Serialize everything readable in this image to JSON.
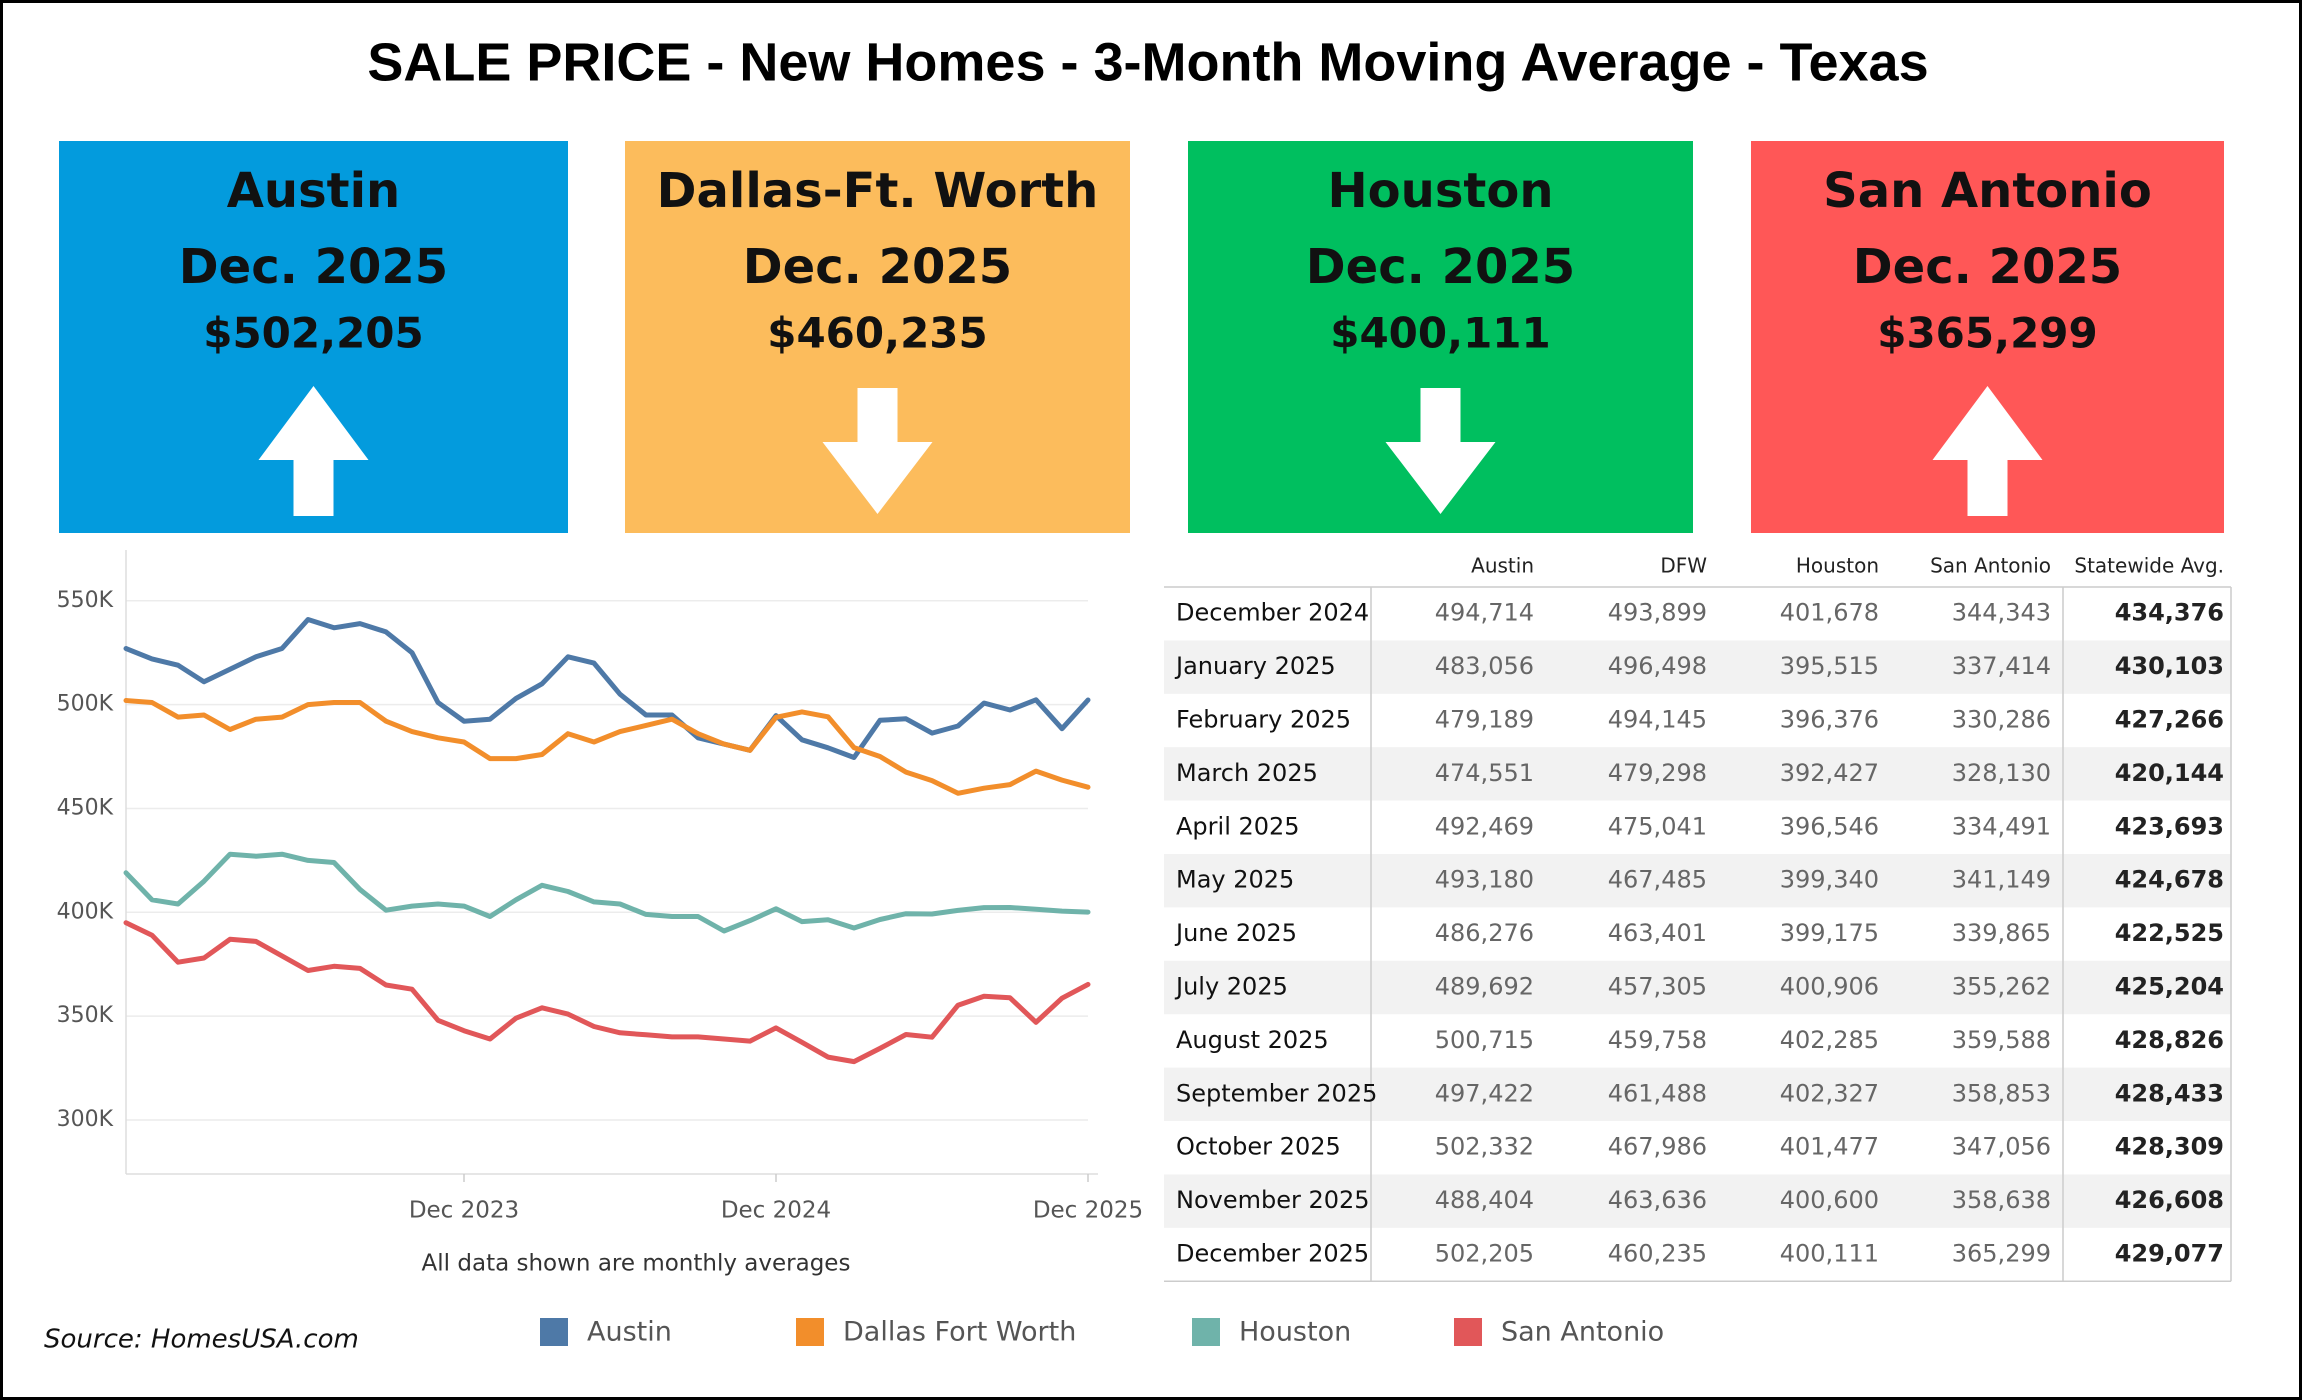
{
  "title": "SALE PRICE - New Homes - 3-Month Moving Average - Texas",
  "cards": [
    {
      "city": "Austin",
      "date": "Dec. 2025",
      "price": "$502,205",
      "arrow": "up",
      "color": "#039bdd"
    },
    {
      "city": "Dallas-Ft. Worth",
      "date": "Dec. 2025",
      "price": "$460,235",
      "arrow": "down",
      "color": "#fcbc5c"
    },
    {
      "city": "Houston",
      "date": "Dec. 2025",
      "price": "$400,111",
      "arrow": "down",
      "color": "#00bf5f"
    },
    {
      "city": "San Antonio",
      "date": "Dec. 2025",
      "price": "$365,299",
      "arrow": "up",
      "color": "#ff5757"
    }
  ],
  "chart_data": {
    "type": "line",
    "note": "All data shown are monthly averages",
    "x": [
      "2022-11",
      "2022-12",
      "2023-01",
      "2023-02",
      "2023-03",
      "2023-04",
      "2023-05",
      "2023-06",
      "2023-07",
      "2023-08",
      "2023-09",
      "2023-10",
      "2023-11",
      "2023-12",
      "2024-01",
      "2024-02",
      "2024-03",
      "2024-04",
      "2024-05",
      "2024-06",
      "2024-07",
      "2024-08",
      "2024-09",
      "2024-10",
      "2024-11",
      "2024-12",
      "2025-01",
      "2025-02",
      "2025-03",
      "2025-04",
      "2025-05",
      "2025-06",
      "2025-07",
      "2025-08",
      "2025-09",
      "2025-10",
      "2025-11",
      "2025-12"
    ],
    "xticks": [
      {
        "value": "2023-12",
        "label": "Dec 2023"
      },
      {
        "value": "2024-12",
        "label": "Dec 2024"
      },
      {
        "value": "2025-12",
        "label": "Dec 2025"
      }
    ],
    "ylim": [
      274000,
      560000
    ],
    "yticks": [
      {
        "value": 300000,
        "label": "300K"
      },
      {
        "value": 350000,
        "label": "350K"
      },
      {
        "value": 400000,
        "label": "400K"
      },
      {
        "value": 450000,
        "label": "450K"
      },
      {
        "value": 500000,
        "label": "500K"
      },
      {
        "value": 550000,
        "label": "550K"
      }
    ],
    "grid": true,
    "series": [
      {
        "name": "Austin",
        "color": "#4e79a7",
        "values": [
          527000,
          522000,
          519000,
          511000,
          517000,
          523000,
          527000,
          541000,
          537000,
          539000,
          535000,
          525000,
          501000,
          492000,
          493000,
          503000,
          510000,
          523000,
          520000,
          505000,
          495000,
          495000,
          484000,
          481000,
          478000,
          494714,
          483056,
          479189,
          474551,
          492469,
          493180,
          486276,
          489692,
          500715,
          497422,
          502332,
          488404,
          502205
        ]
      },
      {
        "name": "Dallas Fort Worth",
        "color": "#f28e2b",
        "values": [
          502000,
          501000,
          494000,
          495000,
          488000,
          493000,
          494000,
          500000,
          501000,
          501000,
          492000,
          487000,
          484000,
          482000,
          474000,
          474000,
          476000,
          486000,
          482000,
          487000,
          490000,
          493000,
          486000,
          481000,
          478000,
          493899,
          496498,
          494145,
          479298,
          475041,
          467485,
          463401,
          457305,
          459758,
          461488,
          467986,
          463636,
          460235
        ]
      },
      {
        "name": "Houston",
        "color": "#6fb3aa",
        "values": [
          419000,
          406000,
          404000,
          415000,
          428000,
          427000,
          428000,
          425000,
          424000,
          411000,
          401000,
          403000,
          404000,
          403000,
          398000,
          406000,
          413000,
          410000,
          405000,
          404000,
          399000,
          398000,
          398000,
          391000,
          396000,
          401678,
          395515,
          396376,
          392427,
          396546,
          399340,
          399175,
          400906,
          402285,
          402327,
          401477,
          400600,
          400111
        ]
      },
      {
        "name": "San Antonio",
        "color": "#e15759",
        "values": [
          395000,
          389000,
          376000,
          378000,
          387000,
          386000,
          379000,
          372000,
          374000,
          373000,
          365000,
          363000,
          348000,
          343000,
          339000,
          349000,
          354000,
          351000,
          345000,
          342000,
          341000,
          340000,
          340000,
          339000,
          338000,
          344343,
          337414,
          330286,
          328130,
          334491,
          341149,
          339865,
          355262,
          359588,
          358853,
          347056,
          358638,
          365299
        ]
      }
    ]
  },
  "table": {
    "columns": [
      "Austin",
      "DFW",
      "Houston",
      "San Antonio",
      "Statewide Avg."
    ],
    "rows": [
      [
        "December 2024",
        "494,714",
        "493,899",
        "401,678",
        "344,343",
        "434,376"
      ],
      [
        "January 2025",
        "483,056",
        "496,498",
        "395,515",
        "337,414",
        "430,103"
      ],
      [
        "February 2025",
        "479,189",
        "494,145",
        "396,376",
        "330,286",
        "427,266"
      ],
      [
        "March 2025",
        "474,551",
        "479,298",
        "392,427",
        "328,130",
        "420,144"
      ],
      [
        "April 2025",
        "492,469",
        "475,041",
        "396,546",
        "334,491",
        "423,693"
      ],
      [
        "May 2025",
        "493,180",
        "467,485",
        "399,340",
        "341,149",
        "424,678"
      ],
      [
        "June 2025",
        "486,276",
        "463,401",
        "399,175",
        "339,865",
        "422,525"
      ],
      [
        "July 2025",
        "489,692",
        "457,305",
        "400,906",
        "355,262",
        "425,204"
      ],
      [
        "August 2025",
        "500,715",
        "459,758",
        "402,285",
        "359,588",
        "428,826"
      ],
      [
        "September 2025",
        "497,422",
        "461,488",
        "402,327",
        "358,853",
        "428,433"
      ],
      [
        "October 2025",
        "502,332",
        "467,986",
        "401,477",
        "347,056",
        "428,309"
      ],
      [
        "November 2025",
        "488,404",
        "463,636",
        "400,600",
        "358,638",
        "426,608"
      ],
      [
        "December 2025",
        "502,205",
        "460,235",
        "400,111",
        "365,299",
        "429,077"
      ]
    ]
  },
  "source": "Source: HomesUSA.com"
}
